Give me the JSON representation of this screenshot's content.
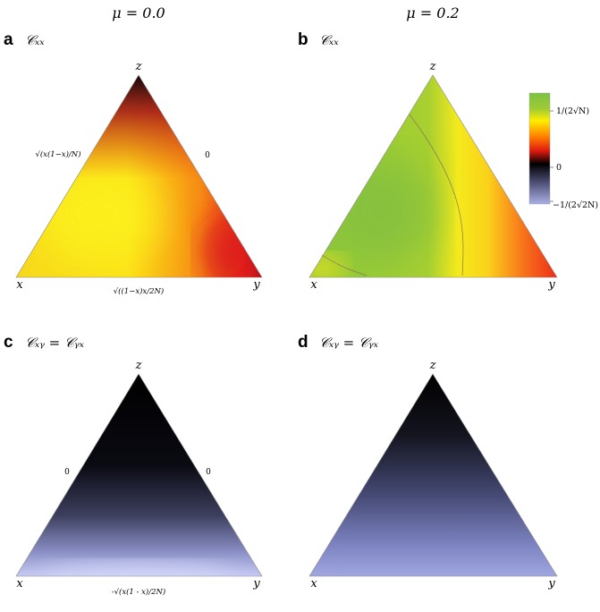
{
  "columns": [
    {
      "title": "μ = 0.0"
    },
    {
      "title": "μ = 0.2"
    }
  ],
  "panels": [
    {
      "letter": "a",
      "title": "𝒞ₓₓ",
      "vertices": {
        "top": "z",
        "left": "x",
        "right": "y"
      },
      "edge_labels": {
        "left": "√(x(1−x)/N)",
        "right": "0",
        "bottom": "√((1−x)x/2N)"
      }
    },
    {
      "letter": "b",
      "title": "𝒞ₓₓ",
      "vertices": {
        "top": "z",
        "left": "x",
        "right": "y"
      },
      "edge_labels": {
        "left": "",
        "right": "",
        "bottom": ""
      }
    },
    {
      "letter": "c",
      "title": "𝒞ₓᵧ = 𝒞ᵧₓ",
      "vertices": {
        "top": "z",
        "left": "x",
        "right": "y"
      },
      "edge_labels": {
        "left": "0",
        "right": "0",
        "bottom": "-√(x(1 - x)/2N)"
      }
    },
    {
      "letter": "d",
      "title": "𝒞ₓᵧ = 𝒞ᵧₓ",
      "vertices": {
        "top": "z",
        "left": "x",
        "right": "y"
      },
      "edge_labels": {
        "left": "",
        "right": "",
        "bottom": ""
      }
    }
  ],
  "colorbar": {
    "top_label": "1/(2√N)",
    "mid_label": "0",
    "bottom_label": "−1/(2√2N)",
    "colors": [
      "#7cc242",
      "#ffee00",
      "#ff2a00",
      "#000000",
      "#aab0e6"
    ]
  }
}
